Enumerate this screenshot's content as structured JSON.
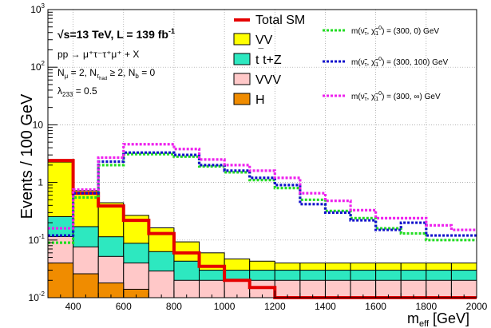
{
  "chart_data": {
    "type": "histogram",
    "xlabel": "m",
    "xlabel_sub": "eff",
    "xlabel_unit": " [GeV]",
    "ylabel": "Events / 100 GeV",
    "x_range": [
      300,
      2000
    ],
    "y_range": [
      0.01,
      1000
    ],
    "y_scale": "log",
    "grid": true,
    "x_ticks": [
      400,
      600,
      800,
      1000,
      1200,
      1400,
      1600,
      1800,
      2000
    ],
    "y_ticks": [
      {
        "value": 0.01,
        "base": "10",
        "exp": "-2"
      },
      {
        "value": 0.1,
        "base": "10",
        "exp": "-1"
      },
      {
        "value": 1,
        "base": "1",
        "exp": ""
      },
      {
        "value": 10,
        "base": "10",
        "exp": ""
      },
      {
        "value": 100,
        "base": "10",
        "exp": "2"
      },
      {
        "value": 1000,
        "base": "10",
        "exp": "3"
      }
    ],
    "bin_edges": [
      300,
      400,
      500,
      600,
      700,
      800,
      900,
      1000,
      1100,
      1200,
      1300,
      1400,
      1500,
      1600,
      1700,
      1800,
      1900,
      2000
    ],
    "stack": [
      {
        "name": "H",
        "color": "#f08c00",
        "values": [
          0.04,
          0.026,
          0.018,
          0.014,
          0.01,
          0.01,
          0.01,
          0.01,
          0.01,
          0.01,
          0.01,
          0.01,
          0.01,
          0.01,
          0.01,
          0.01,
          0.01
        ]
      },
      {
        "name": "VVV",
        "color": "#ffc8c8",
        "values": [
          0.075,
          0.05,
          0.034,
          0.026,
          0.019,
          0.01,
          0.01,
          0.01,
          0.01,
          0.01,
          0.01,
          0.01,
          0.01,
          0.01,
          0.01,
          0.01,
          0.01
        ]
      },
      {
        "name": "tt+Z",
        "label_html": "t&#772;t+Z",
        "color": "#2de8c0",
        "values": [
          0.14,
          0.095,
          0.062,
          0.048,
          0.034,
          0.023,
          0.01,
          0.01,
          0.01,
          0.01,
          0.01,
          0.01,
          0.01,
          0.01,
          0.01,
          0.01,
          0.01
        ]
      },
      {
        "name": "VV",
        "color": "#ffff00",
        "values": [
          2.0,
          0.55,
          0.33,
          0.18,
          0.1,
          0.05,
          0.03,
          0.017,
          0.013,
          0.01,
          0.01,
          0.01,
          0.01,
          0.01,
          0.01,
          0.01,
          0.01
        ]
      }
    ],
    "total": {
      "name": "Total SM",
      "color": "#e50000",
      "values": [
        2.4,
        0.65,
        0.39,
        0.22,
        0.13,
        0.06,
        0.035,
        0.02,
        0.015,
        0.01,
        0.01,
        0.01,
        0.01,
        0.01,
        0.01,
        0.01,
        0.01
      ]
    },
    "signals": [
      {
        "name": "m(ν̃τ, χ̃₁⁰) = (300, 0) GeV",
        "label_mass": "(300, 0)",
        "color": "#22dd22",
        "values": [
          0.09,
          0.55,
          2.0,
          3.1,
          3.1,
          2.8,
          1.9,
          1.5,
          1.1,
          0.8,
          0.5,
          0.32,
          0.24,
          0.16,
          0.13,
          0.1,
          0.1
        ]
      },
      {
        "name": "m(ν̃τ, χ̃₁⁰) = (300, 100) GeV",
        "label_mass": "(300, 100)",
        "color": "#1111cc",
        "values": [
          0.12,
          0.65,
          2.3,
          3.3,
          3.3,
          3.0,
          2.0,
          1.6,
          1.2,
          0.9,
          0.42,
          0.3,
          0.22,
          0.15,
          0.2,
          0.12,
          0.12
        ]
      },
      {
        "name": "m(ν̃τ, χ̃₁⁰) = (300, ∞) GeV",
        "label_mass": "(300, ∞)",
        "color": "#ee22ee",
        "values": [
          0.16,
          0.75,
          2.7,
          4.6,
          4.6,
          3.8,
          2.5,
          2.0,
          1.6,
          1.2,
          0.65,
          0.48,
          0.33,
          0.24,
          0.24,
          0.18,
          0.15
        ]
      }
    ],
    "annotations": {
      "energy": "√s=13 TeV, L = 139 fb",
      "energy_sup": "-1",
      "process": "pp → μ⁺τ⁻τ⁺μ⁺ + X",
      "selection": "N",
      "lambda": "λ",
      "lambda_sub": "233",
      "lambda_val": " = 0.5"
    }
  }
}
